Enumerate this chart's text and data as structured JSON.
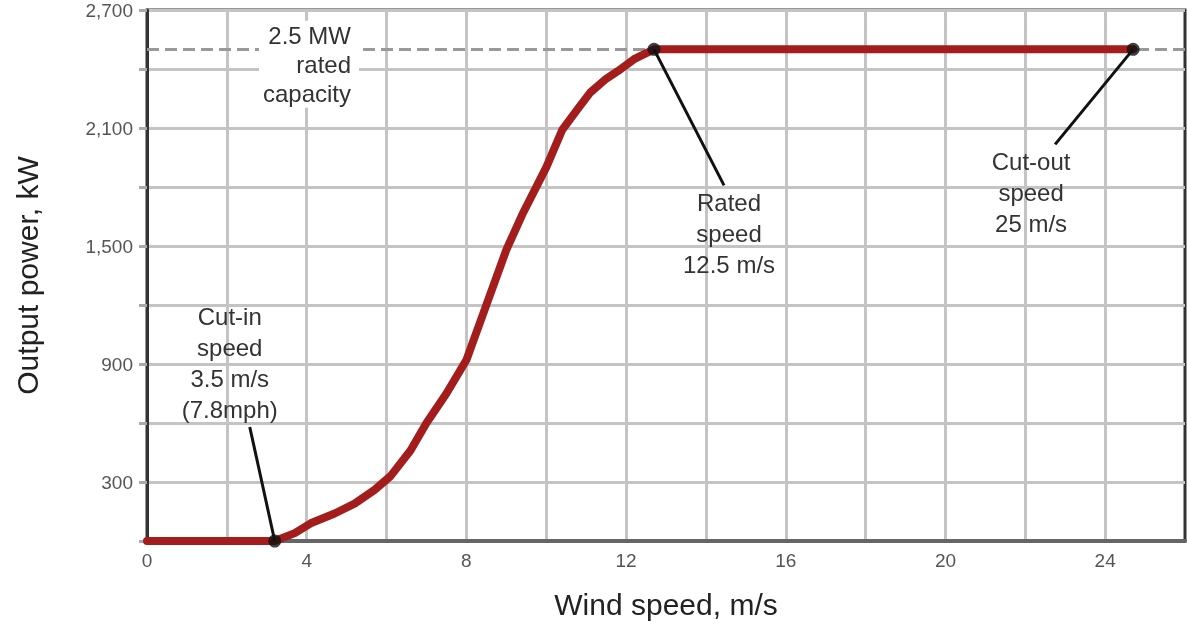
{
  "chart_data": {
    "type": "line",
    "xlabel": "Wind speed, m/s",
    "ylabel": "Output power, kW",
    "x": [
      0,
      3.2,
      3.7,
      4.1,
      4.7,
      5.2,
      5.7,
      6.1,
      6.6,
      7,
      7.5,
      8,
      8.5,
      9,
      9.4,
      10,
      10.4,
      10.8,
      11.1,
      11.5,
      11.8,
      12.2,
      12.7,
      24.7
    ],
    "series": [
      {
        "color": "#a31d1d",
        "values": [
          0,
          0,
          40,
          90,
          140,
          190,
          260,
          330,
          460,
          600,
          750,
          920,
          1200,
          1480,
          1660,
          1900,
          2090,
          2200,
          2280,
          2350,
          2390,
          2450,
          2500,
          2500
        ]
      },
      {
        "type": "scatter",
        "color": "#111111",
        "marker": "circle",
        "x": [
          3.2,
          12.7,
          24.7
        ],
        "values": [
          0,
          2500,
          2500
        ]
      }
    ],
    "xlim": [
      0,
      26
    ],
    "xticks": [
      0,
      {
        "value": 2,
        "label": null
      },
      4,
      {
        "value": 6,
        "label": null
      },
      8,
      {
        "value": 10,
        "label": null
      },
      12,
      {
        "value": 14,
        "label": null
      },
      16,
      {
        "value": 18,
        "label": null
      },
      20,
      {
        "value": 22,
        "label": null
      },
      24
    ],
    "ylim": [
      0,
      2700
    ],
    "yticks": [
      {
        "value": 0,
        "label": null
      },
      300,
      {
        "value": 600,
        "label": null
      },
      900,
      {
        "value": 1200,
        "label": null
      },
      {
        "value": 1500,
        "label": "1,500"
      },
      {
        "value": 1800,
        "label": null
      },
      {
        "value": 2100,
        "label": "2,100"
      },
      {
        "value": 2400,
        "label": null
      },
      {
        "value": 2700,
        "label": "2,700"
      }
    ],
    "grid": true,
    "line_style": "solid",
    "ref_lines": [
      {
        "axis": "y",
        "value": 2500,
        "label": "2.5 MW\nrated\ncapacity",
        "color": "#999999",
        "line_style": "dashed"
      }
    ],
    "annotations": [
      {
        "text": "Cut-in\nspeed\n3.5 m/s\n(7.8mph)",
        "x": 3.2,
        "y": 0
      },
      {
        "text": "Rated\nspeed\n12.5 m/s",
        "x": 12.7,
        "y": 2500
      },
      {
        "text": "Cut-out\nspeed\n25 m/s",
        "x": 24.7,
        "y": 2500
      }
    ]
  }
}
